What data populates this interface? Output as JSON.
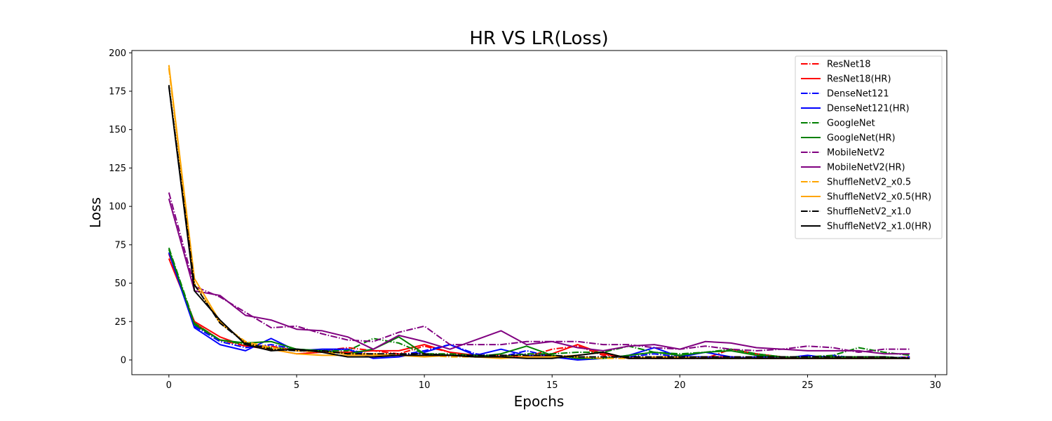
{
  "chart_data": {
    "type": "line",
    "title": "HR VS LR(Loss)",
    "xlabel": "Epochs",
    "ylabel": "Loss",
    "xlim": [
      -1.45,
      30.45
    ],
    "ylim": [
      -9.6,
      201.5
    ],
    "xticks": [
      0,
      5,
      10,
      15,
      20,
      25,
      30
    ],
    "yticks": [
      0,
      25,
      50,
      75,
      100,
      125,
      150,
      175,
      200
    ],
    "grid": false,
    "legend": "top-right",
    "x": [
      0,
      1,
      2,
      3,
      4,
      5,
      6,
      7,
      8,
      9,
      10,
      11,
      12,
      13,
      14,
      15,
      16,
      17,
      18,
      19,
      20,
      21,
      22,
      23,
      24,
      25,
      26,
      27,
      28,
      29
    ],
    "series": [
      {
        "name": "ResNet18",
        "color": "#ff0000",
        "dash": "dashdot",
        "values": [
          69,
          24,
          13,
          9,
          9,
          6,
          6,
          8,
          6,
          4,
          9,
          5,
          2,
          3,
          2,
          7,
          9,
          3,
          2,
          1,
          1,
          1,
          7,
          4,
          2,
          1,
          1,
          1,
          1,
          2
        ]
      },
      {
        "name": "ResNet18(HR)",
        "color": "#ff0000",
        "dash": "solid",
        "values": [
          66,
          25,
          15,
          9,
          7,
          4,
          5,
          5,
          6,
          6,
          10,
          5,
          3,
          2,
          2,
          4,
          10,
          4,
          1,
          1,
          1,
          2,
          2,
          1,
          1,
          1,
          1,
          1,
          1,
          1
        ]
      },
      {
        "name": "DenseNet121",
        "color": "#0000ff",
        "dash": "dashdot",
        "values": [
          70,
          22,
          12,
          8,
          10,
          7,
          6,
          7,
          3,
          3,
          6,
          10,
          4,
          2,
          6,
          2,
          1,
          1,
          2,
          4,
          2,
          2,
          1,
          2,
          2,
          1,
          3,
          1,
          1,
          2
        ]
      },
      {
        "name": "DenseNet121(HR)",
        "color": "#0000ff",
        "dash": "solid",
        "values": [
          70,
          21,
          10,
          6,
          14,
          6,
          7,
          7,
          1,
          2,
          5,
          10,
          3,
          7,
          3,
          2,
          0,
          1,
          3,
          8,
          2,
          5,
          2,
          1,
          1,
          3,
          1,
          2,
          2,
          1
        ]
      },
      {
        "name": "GoogleNet",
        "color": "#008000",
        "dash": "dashdot",
        "values": [
          73,
          24,
          13,
          10,
          8,
          7,
          6,
          6,
          14,
          11,
          4,
          4,
          3,
          2,
          4,
          4,
          5,
          5,
          9,
          5,
          4,
          5,
          7,
          4,
          2,
          2,
          3,
          8,
          5,
          3
        ]
      },
      {
        "name": "GoogleNet(HR)",
        "color": "#008000",
        "dash": "solid",
        "values": [
          72,
          23,
          13,
          11,
          12,
          7,
          6,
          4,
          7,
          15,
          4,
          3,
          2,
          4,
          9,
          3,
          1,
          1,
          3,
          5,
          3,
          5,
          6,
          3,
          2,
          1,
          2,
          2,
          2,
          1
        ]
      },
      {
        "name": "MobileNetV2",
        "color": "#800080",
        "dash": "dashdot",
        "values": [
          109,
          48,
          41,
          31,
          21,
          22,
          17,
          13,
          12,
          18,
          22,
          10,
          10,
          10,
          12,
          12,
          12,
          10,
          10,
          8,
          7,
          9,
          7,
          6,
          7,
          9,
          8,
          5,
          7,
          7
        ]
      },
      {
        "name": "MobileNetV2(HR)",
        "color": "#800080",
        "dash": "solid",
        "values": [
          105,
          45,
          42,
          29,
          26,
          20,
          19,
          15,
          7,
          16,
          12,
          7,
          13,
          19,
          10,
          12,
          8,
          6,
          9,
          10,
          7,
          12,
          11,
          8,
          7,
          6,
          6,
          6,
          4,
          4
        ]
      },
      {
        "name": "ShuffleNetV2_x0.5",
        "color": "#ffa500",
        "dash": "dashdot",
        "values": [
          190,
          50,
          24,
          12,
          8,
          6,
          5,
          4,
          4,
          3,
          3,
          2,
          2,
          2,
          2,
          2,
          2,
          1,
          1,
          1,
          1,
          1,
          1,
          1,
          1,
          1,
          1,
          1,
          1,
          1
        ]
      },
      {
        "name": "ShuffleNetV2_x0.5(HR)",
        "color": "#ffa500",
        "dash": "solid",
        "values": [
          192,
          53,
          25,
          11,
          7,
          4,
          3,
          3,
          3,
          3,
          2,
          3,
          2,
          1,
          2,
          2,
          3,
          5,
          1,
          2,
          2,
          1,
          1,
          1,
          1,
          1,
          1,
          1,
          1,
          1
        ]
      },
      {
        "name": "ShuffleNetV2_x1.0",
        "color": "#000000",
        "dash": "dashdot",
        "values": [
          179,
          49,
          24,
          11,
          7,
          6,
          6,
          4,
          4,
          4,
          4,
          3,
          3,
          3,
          3,
          3,
          2,
          2,
          2,
          2,
          2,
          2,
          2,
          2,
          2,
          2,
          2,
          2,
          2,
          1
        ]
      },
      {
        "name": "ShuffleNetV2_x1.0(HR)",
        "color": "#000000",
        "dash": "solid",
        "values": [
          178,
          45,
          26,
          10,
          6,
          7,
          5,
          2,
          2,
          3,
          3,
          3,
          2,
          2,
          1,
          1,
          3,
          5,
          1,
          1,
          1,
          1,
          1,
          1,
          1,
          1,
          1,
          1,
          1,
          1
        ]
      }
    ]
  }
}
